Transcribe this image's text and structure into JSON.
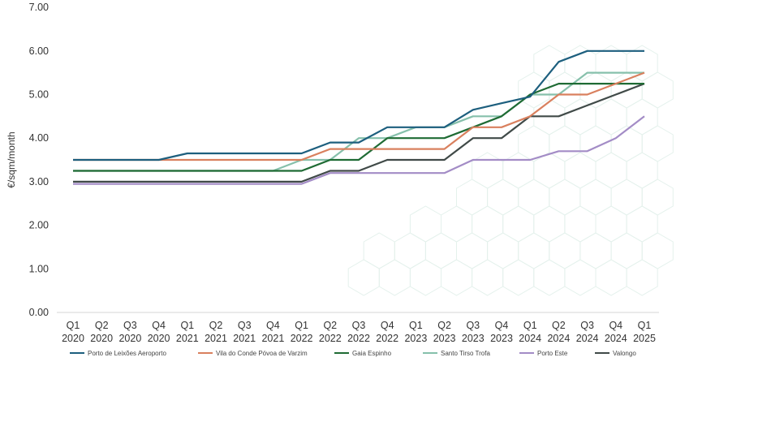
{
  "chart_data": {
    "type": "line",
    "ylabel": "€/sqm/month",
    "ylim": [
      0,
      7
    ],
    "yticks": [
      "0.00",
      "1.00",
      "2.00",
      "3.00",
      "4.00",
      "5.00",
      "6.00",
      "7.00"
    ],
    "grid": false,
    "legend_position": "bottom",
    "categories": [
      [
        "Q1",
        "2020"
      ],
      [
        "Q2",
        "2020"
      ],
      [
        "Q3",
        "2020"
      ],
      [
        "Q4",
        "2020"
      ],
      [
        "Q1",
        "2021"
      ],
      [
        "Q2",
        "2021"
      ],
      [
        "Q3",
        "2021"
      ],
      [
        "Q4",
        "2021"
      ],
      [
        "Q1",
        "2022"
      ],
      [
        "Q2",
        "2022"
      ],
      [
        "Q3",
        "2022"
      ],
      [
        "Q4",
        "2022"
      ],
      [
        "Q1",
        "2023"
      ],
      [
        "Q2",
        "2023"
      ],
      [
        "Q3",
        "2023"
      ],
      [
        "Q4",
        "2023"
      ],
      [
        "Q1",
        "2024"
      ],
      [
        "Q2",
        "2024"
      ],
      [
        "Q3",
        "2024"
      ],
      [
        "Q4",
        "2024"
      ],
      [
        "Q1",
        "2025"
      ]
    ],
    "series": [
      {
        "name": "Porto de Leixões Aeroporto",
        "color": "#1d5f7e",
        "values": [
          3.5,
          3.5,
          3.5,
          3.5,
          3.65,
          3.65,
          3.65,
          3.65,
          3.65,
          3.9,
          3.9,
          4.25,
          4.25,
          4.25,
          4.65,
          4.8,
          4.95,
          5.75,
          6.0,
          6.0,
          6.0
        ]
      },
      {
        "name": "Vila do Conde Póvoa de Varzim",
        "color": "#d9805e",
        "values": [
          3.5,
          3.5,
          3.5,
          3.5,
          3.5,
          3.5,
          3.5,
          3.5,
          3.5,
          3.75,
          3.75,
          3.75,
          3.75,
          3.75,
          4.25,
          4.25,
          4.5,
          5.0,
          5.0,
          5.25,
          5.5
        ]
      },
      {
        "name": "Gaia Espinho",
        "color": "#1f6b34",
        "values": [
          3.25,
          3.25,
          3.25,
          3.25,
          3.25,
          3.25,
          3.25,
          3.25,
          3.25,
          3.5,
          3.5,
          4.0,
          4.0,
          4.0,
          4.25,
          4.5,
          5.0,
          5.25,
          5.25,
          5.25,
          5.25
        ]
      },
      {
        "name": "Santo Tirso Trofa",
        "color": "#86c0ab",
        "values": [
          3.25,
          3.25,
          3.25,
          3.25,
          3.25,
          3.25,
          3.25,
          3.25,
          3.5,
          3.5,
          4.0,
          4.0,
          4.25,
          4.25,
          4.5,
          4.5,
          5.0,
          5.0,
          5.5,
          5.5,
          5.5
        ]
      },
      {
        "name": "Porto Este",
        "color": "#a38cc6",
        "values": [
          2.95,
          2.95,
          2.95,
          2.95,
          2.95,
          2.95,
          2.95,
          2.95,
          2.95,
          3.2,
          3.2,
          3.2,
          3.2,
          3.2,
          3.5,
          3.5,
          3.5,
          3.7,
          3.7,
          4.0,
          4.5
        ]
      },
      {
        "name": "Valongo",
        "color": "#404a48",
        "values": [
          3.0,
          3.0,
          3.0,
          3.0,
          3.0,
          3.0,
          3.0,
          3.0,
          3.0,
          3.25,
          3.25,
          3.5,
          3.5,
          3.5,
          4.0,
          4.0,
          4.5,
          4.5,
          4.75,
          5.0,
          5.25
        ]
      }
    ]
  }
}
